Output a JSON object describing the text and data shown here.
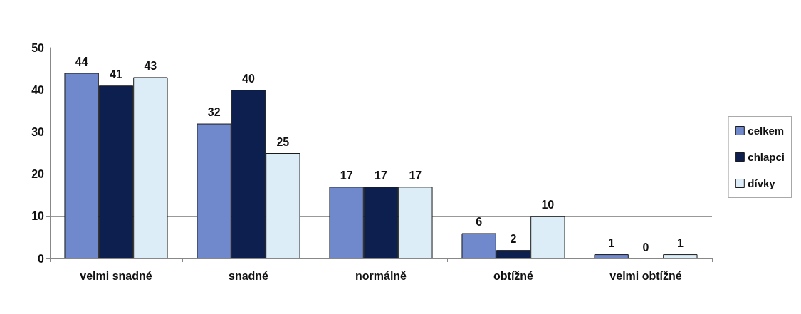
{
  "chart_data": {
    "type": "bar",
    "categories": [
      "velmi snadné",
      "snadné",
      "normálně",
      "obtížné",
      "velmi obtížné"
    ],
    "series": [
      {
        "name": "celkem",
        "color": "#7088cc",
        "values": [
          44,
          32,
          17,
          6,
          1
        ]
      },
      {
        "name": "chlapci",
        "color": "#0c1f4e",
        "values": [
          41,
          40,
          17,
          2,
          0
        ]
      },
      {
        "name": "dívky",
        "color": "#dcedf8",
        "values": [
          43,
          25,
          17,
          10,
          1
        ]
      }
    ],
    "ylim": [
      0,
      50
    ],
    "yticks": [
      0,
      10,
      20,
      30,
      40,
      50
    ],
    "grid": "y",
    "legend": "right",
    "data_labels": true
  }
}
